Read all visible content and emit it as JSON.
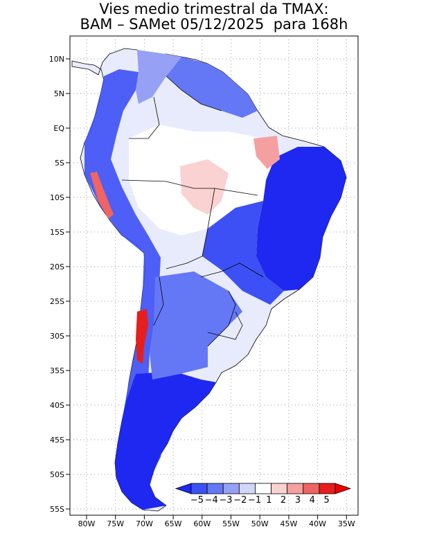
{
  "title": {
    "line1": "Vies medio trimestral da TMAX:",
    "line2": "BAM – SAMet 05/12/2025  para 168h"
  },
  "map": {
    "region": "South America",
    "lon_ticks": [
      "80W",
      "75W",
      "70W",
      "65W",
      "60W",
      "55W",
      "50W",
      "45W",
      "40W",
      "35W"
    ],
    "lat_ticks": [
      "10N",
      "5N",
      "EQ",
      "5S",
      "10S",
      "15S",
      "20S",
      "25S",
      "30S",
      "35S",
      "40S",
      "45S",
      "50S",
      "55S"
    ]
  },
  "legend": {
    "labels": [
      "−5",
      "−4",
      "−3",
      "−2",
      "−1",
      "1",
      "2",
      "3",
      "4",
      "5"
    ],
    "colors": [
      "#1e28f0",
      "#3c50f5",
      "#6478f5",
      "#96a0f5",
      "#d2d7fa",
      "#ffffff",
      "#fad2d2",
      "#f5a0a0",
      "#f06464",
      "#e61e1e",
      "#f00000"
    ]
  }
}
